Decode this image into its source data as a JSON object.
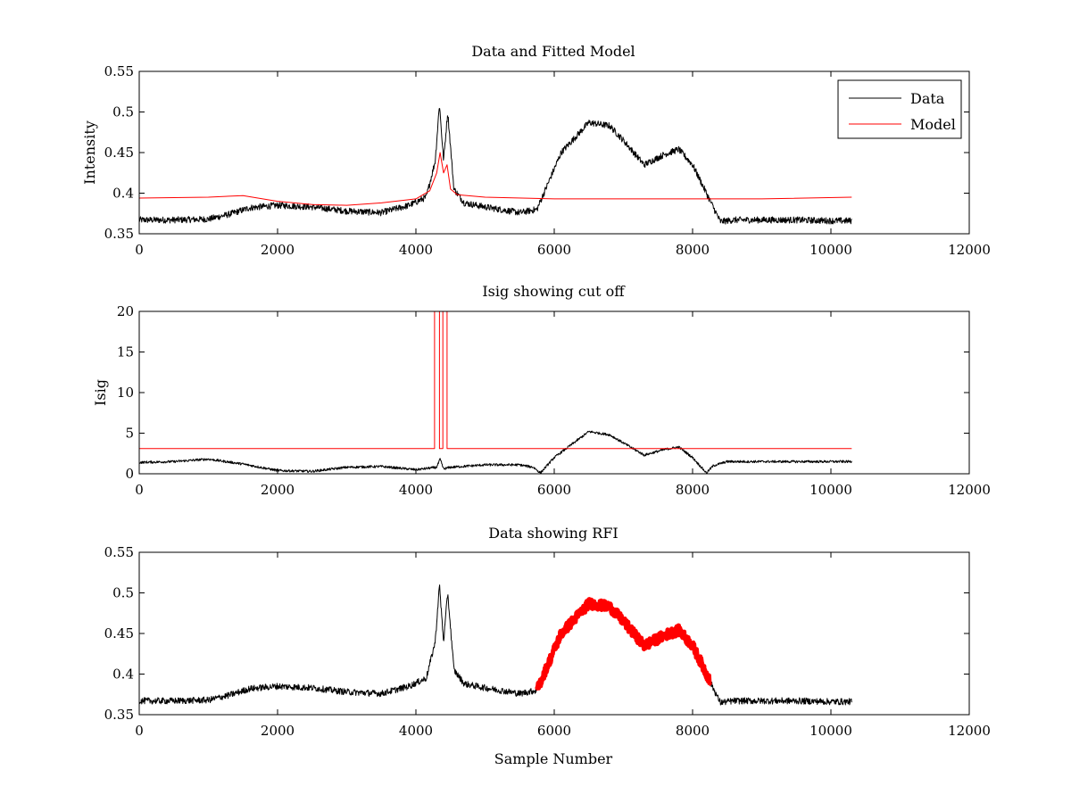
{
  "figure": {
    "colors": {
      "data": "#000000",
      "model": "#ff0000",
      "rfi": "#ff0000",
      "axes": "#000000",
      "background": "#ffffff"
    }
  },
  "chart_data": [
    {
      "type": "line",
      "title": "Data and Fitted Model",
      "xlabel": "",
      "ylabel": "Intensity",
      "xlim": [
        0,
        12000
      ],
      "ylim": [
        0.35,
        0.55
      ],
      "xticks": [
        "0",
        "2000",
        "4000",
        "6000",
        "8000",
        "10000",
        "12000"
      ],
      "yticks": [
        "0.35",
        "0.4",
        "0.45",
        "0.5",
        "0.55"
      ],
      "legend": {
        "placement": "top-right",
        "entries": [
          "Data",
          "Model"
        ]
      },
      "series": [
        {
          "name": "Data",
          "color": "#000000",
          "noise": 0.004,
          "x": [
            0,
            500,
            1000,
            1300,
            1600,
            2000,
            2500,
            3000,
            3500,
            3900,
            4150,
            4280,
            4340,
            4400,
            4460,
            4550,
            4700,
            5000,
            5500,
            5750,
            5900,
            6100,
            6500,
            6800,
            7000,
            7300,
            7600,
            7800,
            8000,
            8200,
            8400,
            8600,
            9000,
            9500,
            10000,
            10300
          ],
          "y": [
            0.367,
            0.367,
            0.368,
            0.374,
            0.382,
            0.385,
            0.383,
            0.378,
            0.376,
            0.385,
            0.395,
            0.44,
            0.51,
            0.44,
            0.5,
            0.405,
            0.388,
            0.383,
            0.376,
            0.38,
            0.41,
            0.45,
            0.487,
            0.483,
            0.465,
            0.435,
            0.448,
            0.454,
            0.435,
            0.4,
            0.365,
            0.367,
            0.367,
            0.367,
            0.366,
            0.366
          ]
        },
        {
          "name": "Model",
          "color": "#ff0000",
          "x": [
            0,
            1000,
            1500,
            2000,
            2500,
            3000,
            3500,
            4000,
            4200,
            4300,
            4350,
            4400,
            4450,
            4500,
            4600,
            5000,
            6000,
            7000,
            8000,
            9000,
            10300
          ],
          "y": [
            0.394,
            0.395,
            0.397,
            0.39,
            0.386,
            0.385,
            0.388,
            0.393,
            0.403,
            0.425,
            0.45,
            0.425,
            0.435,
            0.405,
            0.398,
            0.395,
            0.393,
            0.393,
            0.393,
            0.393,
            0.395
          ]
        }
      ]
    },
    {
      "type": "line",
      "title": "Isig showing cut off",
      "xlabel": "",
      "ylabel": "Isig",
      "xlim": [
        0,
        12000
      ],
      "ylim": [
        0,
        20
      ],
      "xticks": [
        "0",
        "2000",
        "4000",
        "6000",
        "8000",
        "10000",
        "12000"
      ],
      "yticks": [
        "0",
        "5",
        "10",
        "15",
        "20"
      ],
      "series": [
        {
          "name": "Isig",
          "color": "#000000",
          "noise": 0.15,
          "x": [
            0,
            500,
            1000,
            1500,
            2000,
            2500,
            3000,
            3500,
            4000,
            4300,
            4350,
            4400,
            4500,
            5000,
            5500,
            5700,
            5800,
            6000,
            6500,
            6800,
            7000,
            7300,
            7600,
            7800,
            8000,
            8200,
            8300,
            8500,
            9000,
            10000,
            10300
          ],
          "y": [
            1.4,
            1.5,
            1.8,
            1.2,
            0.4,
            0.3,
            0.8,
            0.9,
            0.5,
            0.8,
            1.8,
            0.6,
            0.8,
            1.1,
            1.1,
            0.8,
            0.1,
            2.0,
            5.2,
            4.8,
            3.8,
            2.3,
            3.0,
            3.3,
            2.0,
            0.1,
            1.0,
            1.5,
            1.5,
            1.5,
            1.5
          ]
        },
        {
          "name": "Cut off",
          "color": "#ff0000",
          "x": [
            0,
            4270,
            4270,
            4340,
            4340,
            4390,
            4390,
            4450,
            4450,
            4510,
            4510,
            10300
          ],
          "y": [
            3.1,
            3.1,
            20,
            20,
            3.1,
            3.1,
            20,
            20,
            3.1,
            3.1,
            3.1,
            3.1
          ]
        }
      ]
    },
    {
      "type": "line",
      "title": "Data showing RFI",
      "xlabel": "Sample Number",
      "ylabel": "",
      "xlim": [
        0,
        12000
      ],
      "ylim": [
        0.35,
        0.55
      ],
      "xticks": [
        "0",
        "2000",
        "4000",
        "6000",
        "8000",
        "10000",
        "12000"
      ],
      "yticks": [
        "0.35",
        "0.4",
        "0.45",
        "0.5",
        "0.55"
      ],
      "series": [
        {
          "name": "Data",
          "color": "#000000",
          "noise": 0.004,
          "x": [
            0,
            500,
            1000,
            1300,
            1600,
            2000,
            2500,
            3000,
            3500,
            3900,
            4150,
            4280,
            4340,
            4400,
            4460,
            4550,
            4700,
            5000,
            5500,
            5750,
            5900,
            6100,
            6500,
            6800,
            7000,
            7300,
            7600,
            7800,
            8000,
            8200,
            8400,
            8600,
            9000,
            9500,
            10000,
            10300
          ],
          "y": [
            0.367,
            0.367,
            0.368,
            0.374,
            0.382,
            0.385,
            0.383,
            0.378,
            0.376,
            0.385,
            0.395,
            0.44,
            0.51,
            0.44,
            0.5,
            0.405,
            0.388,
            0.383,
            0.376,
            0.38,
            0.41,
            0.45,
            0.487,
            0.483,
            0.465,
            0.435,
            0.448,
            0.454,
            0.435,
            0.4,
            0.365,
            0.367,
            0.367,
            0.367,
            0.366,
            0.366
          ]
        },
        {
          "name": "RFI",
          "color": "#ff0000",
          "noise": 0.006,
          "x": [
            5750,
            5900,
            6100,
            6500,
            6800,
            7000,
            7300,
            7600,
            7800,
            8000,
            8250
          ],
          "y": [
            0.38,
            0.41,
            0.45,
            0.487,
            0.483,
            0.465,
            0.435,
            0.448,
            0.454,
            0.435,
            0.392
          ]
        }
      ]
    }
  ]
}
